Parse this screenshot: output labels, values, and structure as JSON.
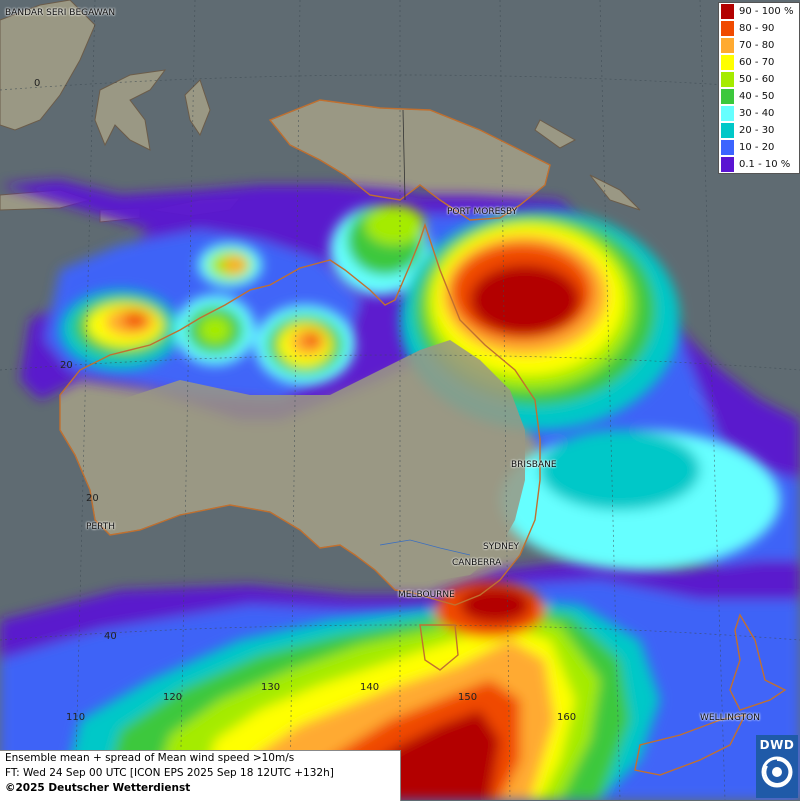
{
  "legend": [
    {
      "label": "90 - 100 %",
      "color": "#b30000"
    },
    {
      "label": "80 - 90",
      "color": "#f04a00"
    },
    {
      "label": "70 - 80",
      "color": "#ffaa30"
    },
    {
      "label": "60 - 70",
      "color": "#ffff00"
    },
    {
      "label": "50 - 60",
      "color": "#a5eb00"
    },
    {
      "label": "40 - 50",
      "color": "#3cc83c"
    },
    {
      "label": "30 - 40",
      "color": "#66ffff"
    },
    {
      "label": "20 - 30",
      "color": "#00c8c8"
    },
    {
      "label": "10 - 20",
      "color": "#3c64ff"
    },
    {
      "label": "0.1 - 10 %",
      "color": "#5a14d2"
    }
  ],
  "cities": {
    "bandar": "BANDAR SERI BEGAWAN",
    "port_moresby": "PORT MORESBY",
    "brisbane": "BRISBANE",
    "perth": "PERTH",
    "sydney": "SYDNEY",
    "canberra": "CANBERRA",
    "melbourne": "MELBOURNE",
    "wellington": "WELLINGTON"
  },
  "coords": {
    "lat0": "0",
    "lat20": "20",
    "lat40": "40",
    "lon110": "110",
    "lon120": "120",
    "lon130": "130",
    "lon140": "140",
    "lon150": "150",
    "lon160": "160",
    "lat20b": "20"
  },
  "info": {
    "line1": "Ensemble mean + spread of Mean wind speed >10m/s",
    "line2": "FT: Wed 24 Sep 00 UTC [ICON EPS 2025 Sep 18 12UTC +132h]",
    "copyright": "©2025 Deutscher Wetterdienst"
  },
  "logo": {
    "text": "DWD"
  },
  "colors": {
    "ocean": "#5f6b72",
    "land": "#9a9884"
  }
}
